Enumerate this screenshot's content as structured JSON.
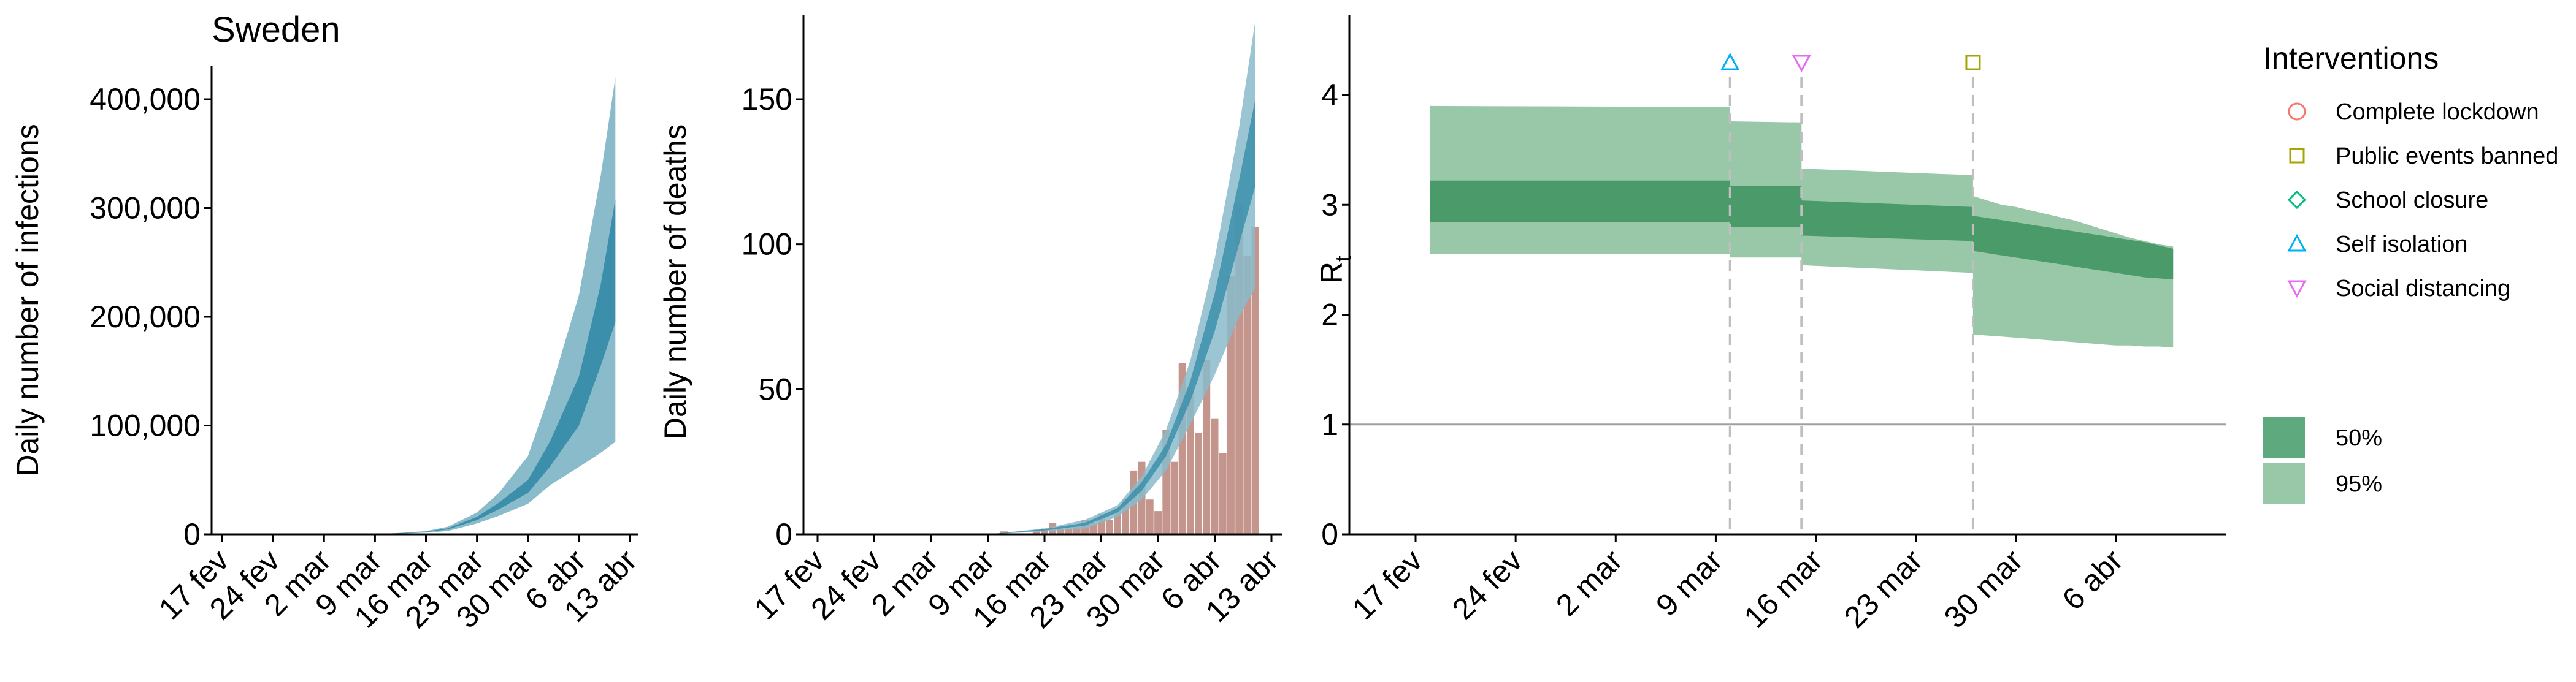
{
  "chart_data": [
    {
      "type": "area",
      "title": "Sweden",
      "xlabel": "",
      "ylabel": "Daily number of infections",
      "x_ticks": [
        "17 fev",
        "24 fev",
        "2 mar",
        "9 mar",
        "16 mar",
        "23 mar",
        "30 mar",
        "6 abr",
        "13 abr"
      ],
      "y_ticks": [
        "0",
        "100,000",
        "200,000",
        "300,000",
        "400,000"
      ],
      "ylim": [
        0,
        420000
      ],
      "series": [
        {
          "band": "95%",
          "x": [
            "2020-03-09",
            "2020-03-13",
            "2020-03-16",
            "2020-03-19",
            "2020-03-23",
            "2020-03-26",
            "2020-03-30",
            "2020-04-02",
            "2020-04-06",
            "2020-04-09",
            "2020-04-11"
          ],
          "lower": [
            0,
            800,
            1500,
            3000,
            10000,
            17000,
            28000,
            45000,
            62000,
            75000,
            85000
          ],
          "upper": [
            0,
            1500,
            3000,
            7000,
            20000,
            38000,
            72000,
            130000,
            220000,
            330000,
            420000
          ]
        },
        {
          "band": "50%",
          "x": [
            "2020-03-09",
            "2020-03-13",
            "2020-03-16",
            "2020-03-19",
            "2020-03-23",
            "2020-03-26",
            "2020-03-30",
            "2020-04-02",
            "2020-04-06",
            "2020-04-09",
            "2020-04-11"
          ],
          "lower": [
            0,
            1000,
            2000,
            4500,
            13000,
            23000,
            38000,
            62000,
            100000,
            155000,
            195000
          ],
          "upper": [
            0,
            1200,
            2500,
            5500,
            16000,
            29000,
            50000,
            85000,
            145000,
            230000,
            308000
          ]
        }
      ]
    },
    {
      "type": "bar",
      "title": "",
      "xlabel": "",
      "ylabel": "Daily number of deaths",
      "x_ticks": [
        "17 fev",
        "24 fev",
        "2 mar",
        "9 mar",
        "16 mar",
        "23 mar",
        "30 mar",
        "6 abr",
        "13 abr"
      ],
      "y_ticks": [
        "0",
        "50",
        "100",
        "150"
      ],
      "ylim": [
        0,
        178
      ],
      "bars": {
        "x": [
          "2020-03-11",
          "2020-03-12",
          "2020-03-13",
          "2020-03-14",
          "2020-03-15",
          "2020-03-16",
          "2020-03-17",
          "2020-03-18",
          "2020-03-19",
          "2020-03-20",
          "2020-03-21",
          "2020-03-22",
          "2020-03-23",
          "2020-03-24",
          "2020-03-25",
          "2020-03-26",
          "2020-03-27",
          "2020-03-28",
          "2020-03-29",
          "2020-03-30",
          "2020-03-31",
          "2020-04-01",
          "2020-04-02",
          "2020-04-03",
          "2020-04-04",
          "2020-04-05",
          "2020-04-06",
          "2020-04-07",
          "2020-04-08",
          "2020-04-09",
          "2020-04-10",
          "2020-04-11"
        ],
        "values": [
          1,
          0,
          0,
          0,
          1,
          2,
          4,
          2,
          2,
          3,
          5,
          4,
          7,
          5,
          9,
          12,
          22,
          25,
          12,
          8,
          36,
          25,
          59,
          50,
          35,
          60,
          40,
          28,
          89,
          114,
          96,
          106
        ]
      },
      "series": [
        {
          "band": "95%",
          "x": [
            "2020-03-09",
            "2020-03-16",
            "2020-03-21",
            "2020-03-25",
            "2020-03-28",
            "2020-03-31",
            "2020-04-03",
            "2020-04-06",
            "2020-04-09",
            "2020-04-11"
          ],
          "lower": [
            0,
            1,
            2,
            6,
            12,
            22,
            38,
            55,
            75,
            85
          ],
          "upper": [
            0,
            2,
            5,
            10,
            20,
            36,
            60,
            95,
            140,
            177
          ]
        },
        {
          "band": "50%",
          "x": [
            "2020-03-09",
            "2020-03-16",
            "2020-03-21",
            "2020-03-25",
            "2020-03-28",
            "2020-03-31",
            "2020-04-03",
            "2020-04-06",
            "2020-04-09",
            "2020-04-11"
          ],
          "lower": [
            0,
            1.3,
            3,
            7.5,
            15,
            27,
            46,
            70,
            100,
            120
          ],
          "upper": [
            0,
            1.8,
            4,
            9,
            18,
            31,
            53,
            83,
            122,
            150
          ]
        }
      ]
    },
    {
      "type": "area",
      "title": "",
      "xlabel": "",
      "ylabel": "R",
      "ylabel_subscript": "t",
      "x_ticks": [
        "17 fev",
        "24 fev",
        "2 mar",
        "9 mar",
        "16 mar",
        "23 mar",
        "30 mar",
        "6 abr"
      ],
      "y_ticks": [
        "0",
        "1",
        "2",
        "3",
        "4"
      ],
      "ylim": [
        0,
        4.8
      ],
      "reference_line": 1,
      "steps": {
        "x": [
          "2020-02-18",
          "2020-03-10",
          "2020-03-10",
          "2020-03-15",
          "2020-03-15",
          "2020-03-27",
          "2020-03-27",
          "2020-03-28",
          "2020-03-29",
          "2020-03-30",
          "2020-03-31",
          "2020-04-01",
          "2020-04-02",
          "2020-04-03",
          "2020-04-04",
          "2020-04-05",
          "2020-04-06",
          "2020-04-07",
          "2020-04-08",
          "2020-04-09",
          "2020-04-10"
        ],
        "ci95_lower": [
          2.55,
          2.55,
          2.52,
          2.52,
          2.45,
          2.38,
          1.82,
          1.81,
          1.8,
          1.79,
          1.78,
          1.77,
          1.76,
          1.75,
          1.74,
          1.73,
          1.72,
          1.72,
          1.71,
          1.71,
          1.7
        ],
        "ci95_upper": [
          3.9,
          3.89,
          3.76,
          3.75,
          3.33,
          3.27,
          3.08,
          3.04,
          3.0,
          2.98,
          2.95,
          2.92,
          2.89,
          2.86,
          2.82,
          2.78,
          2.74,
          2.7,
          2.67,
          2.64,
          2.62
        ],
        "ci50_lower": [
          2.84,
          2.84,
          2.8,
          2.8,
          2.72,
          2.67,
          2.58,
          2.56,
          2.54,
          2.52,
          2.5,
          2.48,
          2.46,
          2.44,
          2.42,
          2.4,
          2.38,
          2.36,
          2.34,
          2.33,
          2.32
        ],
        "ci50_upper": [
          3.22,
          3.22,
          3.17,
          3.17,
          3.04,
          2.98,
          2.9,
          2.88,
          2.86,
          2.84,
          2.82,
          2.8,
          2.78,
          2.76,
          2.74,
          2.72,
          2.7,
          2.68,
          2.66,
          2.63,
          2.6
        ]
      },
      "interventions": [
        {
          "name": "Self isolation",
          "date": "2020-03-10",
          "marker": "triangle-up"
        },
        {
          "name": "Social distancing",
          "date": "2020-03-15",
          "marker": "triangle-down"
        },
        {
          "name": "Public events banned",
          "date": "2020-03-27",
          "marker": "square"
        }
      ]
    }
  ],
  "legend": {
    "title": "Interventions",
    "placement": "right",
    "items": [
      {
        "label": "Complete lockdown",
        "marker": "circle",
        "color": "#F8766D"
      },
      {
        "label": "Public events banned",
        "marker": "square",
        "color": "#A3A500"
      },
      {
        "label": "School closure",
        "marker": "diamond",
        "color": "#00BF7D"
      },
      {
        "label": "Self isolation",
        "marker": "triangle-up",
        "color": "#00B0F6"
      },
      {
        "label": "Social distancing",
        "marker": "triangle-down",
        "color": "#E76BF3"
      }
    ],
    "bands": [
      {
        "label": "50%",
        "color": "#5EA97D"
      },
      {
        "label": "95%",
        "color": "#98C8A8"
      }
    ]
  },
  "colors": {
    "blue_95": "#8ABBCB",
    "blue_50": "#3C8FAA",
    "bars": "#C4958D",
    "green_95": "#98C8A8",
    "green_50": "#4A9A6A",
    "reference_line": "#A0A0A0",
    "dashed_line": "#BFBFBF"
  }
}
